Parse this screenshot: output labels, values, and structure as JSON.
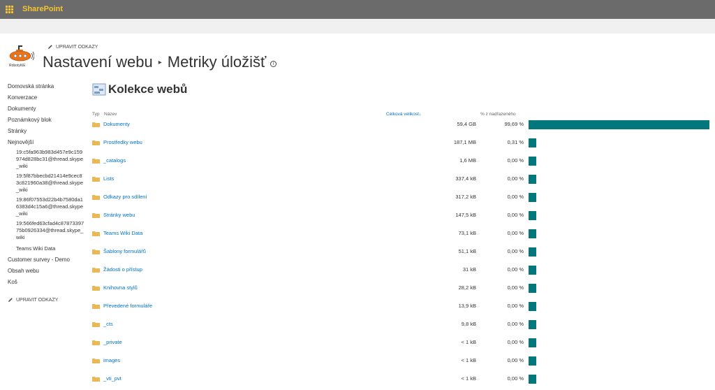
{
  "suitebar": {
    "brand": "SharePoint"
  },
  "header": {
    "logo_label": "RobotyKiE",
    "edit_links": "UPRAVIT ODKAZY",
    "breadcrumb_parent": "Nastavení webu",
    "separator": "▸",
    "page_title": "Metriky úložišť",
    "info": "i"
  },
  "leftnav": {
    "items": [
      {
        "label": "Domovská stránka"
      },
      {
        "label": "Konverzace"
      },
      {
        "label": "Dokumenty"
      },
      {
        "label": "Poznámkový blok"
      },
      {
        "label": "Stránky"
      },
      {
        "label": "Nejnovější"
      }
    ],
    "recent": [
      {
        "label": "19:c5fa963b983d457e9c159974d828bc31@thread.skype_wiki"
      },
      {
        "label": "19:5f87bbecbd21414e9cec83c821960a38@thread.skype_wiki"
      },
      {
        "label": "19:86f07553d22b4b7580da16383d4c15a6@thread.skype_wiki"
      },
      {
        "label": "19:566fed63cfad4c8787339775b0926334@thread.skype_wiki"
      },
      {
        "label": "Teams Wiki Data"
      }
    ],
    "items_after": [
      {
        "label": "Customer survey - Demo"
      },
      {
        "label": "Obsah webu"
      },
      {
        "label": "Koš"
      }
    ],
    "edit_links": "UPRAVIT ODKAZY"
  },
  "main": {
    "section_title": "Kolekce webů",
    "columns": {
      "type": "Typ",
      "name": "Název",
      "size": "Celková velikost",
      "percent": "% z nadřazeného"
    },
    "rows": [
      {
        "name": "Dokumenty",
        "size": "59,4 GB",
        "percent": "99,69 %",
        "share": 0.9969
      },
      {
        "name": "Prostředky webu",
        "size": "187,1 MB",
        "percent": "0,31 %",
        "share": 0.0031
      },
      {
        "name": "_catalogs",
        "size": "1,6 MB",
        "percent": "0,00 %",
        "share": 0
      },
      {
        "name": "Lists",
        "size": "337,4 kB",
        "percent": "0,00 %",
        "share": 0
      },
      {
        "name": "Odkazy pro sdílení",
        "size": "317,2 kB",
        "percent": "0,00 %",
        "share": 0
      },
      {
        "name": "Stránky webu",
        "size": "147,5 kB",
        "percent": "0,00 %",
        "share": 0
      },
      {
        "name": "Teams Wiki Data",
        "size": "73,1 kB",
        "percent": "0,00 %",
        "share": 0
      },
      {
        "name": "Šablony formulářů",
        "size": "51,1 kB",
        "percent": "0,00 %",
        "share": 0
      },
      {
        "name": "Žádosti o přístup",
        "size": "31 kB",
        "percent": "0,00 %",
        "share": 0
      },
      {
        "name": "Knihovna stylů",
        "size": "28,2 kB",
        "percent": "0,00 %",
        "share": 0
      },
      {
        "name": "Převedené formuláře",
        "size": "13,9 kB",
        "percent": "0,00 %",
        "share": 0
      },
      {
        "name": "_cts",
        "size": "9,8 kB",
        "percent": "0,00 %",
        "share": 0
      },
      {
        "name": "_private",
        "size": "< 1 kB",
        "percent": "0,00 %",
        "share": 0
      },
      {
        "name": "images",
        "size": "< 1 kB",
        "percent": "0,00 %",
        "share": 0
      },
      {
        "name": "_vti_pvt",
        "size": "< 1 kB",
        "percent": "0,00 %",
        "share": 0
      }
    ]
  },
  "colors": {
    "accent": "#03787c",
    "brand": "#f4c430",
    "link": "#0072c6",
    "folder": "#e8b957"
  },
  "icons": {
    "app_launcher": "waffle-icon",
    "edit": "pencil-icon",
    "folder": "folder-icon",
    "logo": "submarine-logo",
    "section": "site-collection-icon"
  }
}
